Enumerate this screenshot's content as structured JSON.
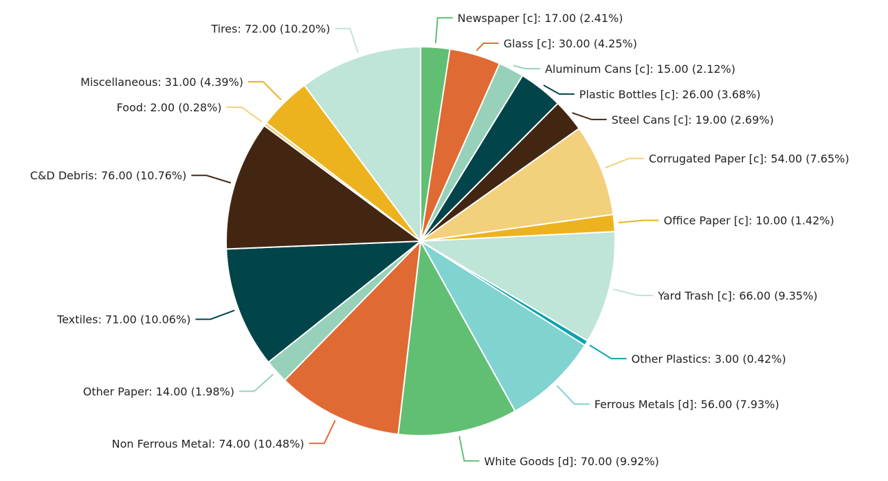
{
  "chart_data": {
    "type": "pie",
    "title": "",
    "start_angle_deg": 90,
    "direction": "clockwise",
    "value_format": "{name}: {value} ({percent}%)",
    "slices": [
      {
        "name": "Newspaper [c]",
        "value": 17.0,
        "percent": 2.41,
        "color": "#61bf74"
      },
      {
        "name": "Glass [c]",
        "value": 30.0,
        "percent": 4.25,
        "color": "#e06a33"
      },
      {
        "name": "Aluminum Cans [c]",
        "value": 15.0,
        "percent": 2.12,
        "color": "#97d1b9"
      },
      {
        "name": "Plastic Bottles [c]",
        "value": 26.0,
        "percent": 3.68,
        "color": "#014449"
      },
      {
        "name": "Steel Cans [c]",
        "value": 19.0,
        "percent": 2.69,
        "color": "#432612"
      },
      {
        "name": "Corrugated Paper [c]",
        "value": 54.0,
        "percent": 7.65,
        "color": "#f3d07b"
      },
      {
        "name": "Office Paper [c]",
        "value": 10.0,
        "percent": 1.42,
        "color": "#ecb31f"
      },
      {
        "name": "Yard Trash [c]",
        "value": 66.0,
        "percent": 9.35,
        "color": "#bfe4d8"
      },
      {
        "name": "Other Plastics",
        "value": 3.0,
        "percent": 0.42,
        "color": "#0aa2ad"
      },
      {
        "name": "Ferrous Metals [d]",
        "value": 56.0,
        "percent": 7.93,
        "color": "#81d3d1"
      },
      {
        "name": "White Goods [d]",
        "value": 70.0,
        "percent": 9.92,
        "color": "#61bf74"
      },
      {
        "name": "Non Ferrous Metal",
        "value": 74.0,
        "percent": 10.48,
        "color": "#e06a33"
      },
      {
        "name": "Other Paper",
        "value": 14.0,
        "percent": 1.98,
        "color": "#97d1b9"
      },
      {
        "name": "Textiles",
        "value": 71.0,
        "percent": 10.06,
        "color": "#014449"
      },
      {
        "name": "C&D Debris",
        "value": 76.0,
        "percent": 10.76,
        "color": "#432612"
      },
      {
        "name": "Food",
        "value": 2.0,
        "percent": 0.28,
        "color": "#f3d07b"
      },
      {
        "name": "Miscellaneous",
        "value": 31.0,
        "percent": 4.39,
        "color": "#ecb31f"
      },
      {
        "name": "Tires",
        "value": 72.0,
        "percent": 10.2,
        "color": "#bfe4d8"
      }
    ]
  }
}
